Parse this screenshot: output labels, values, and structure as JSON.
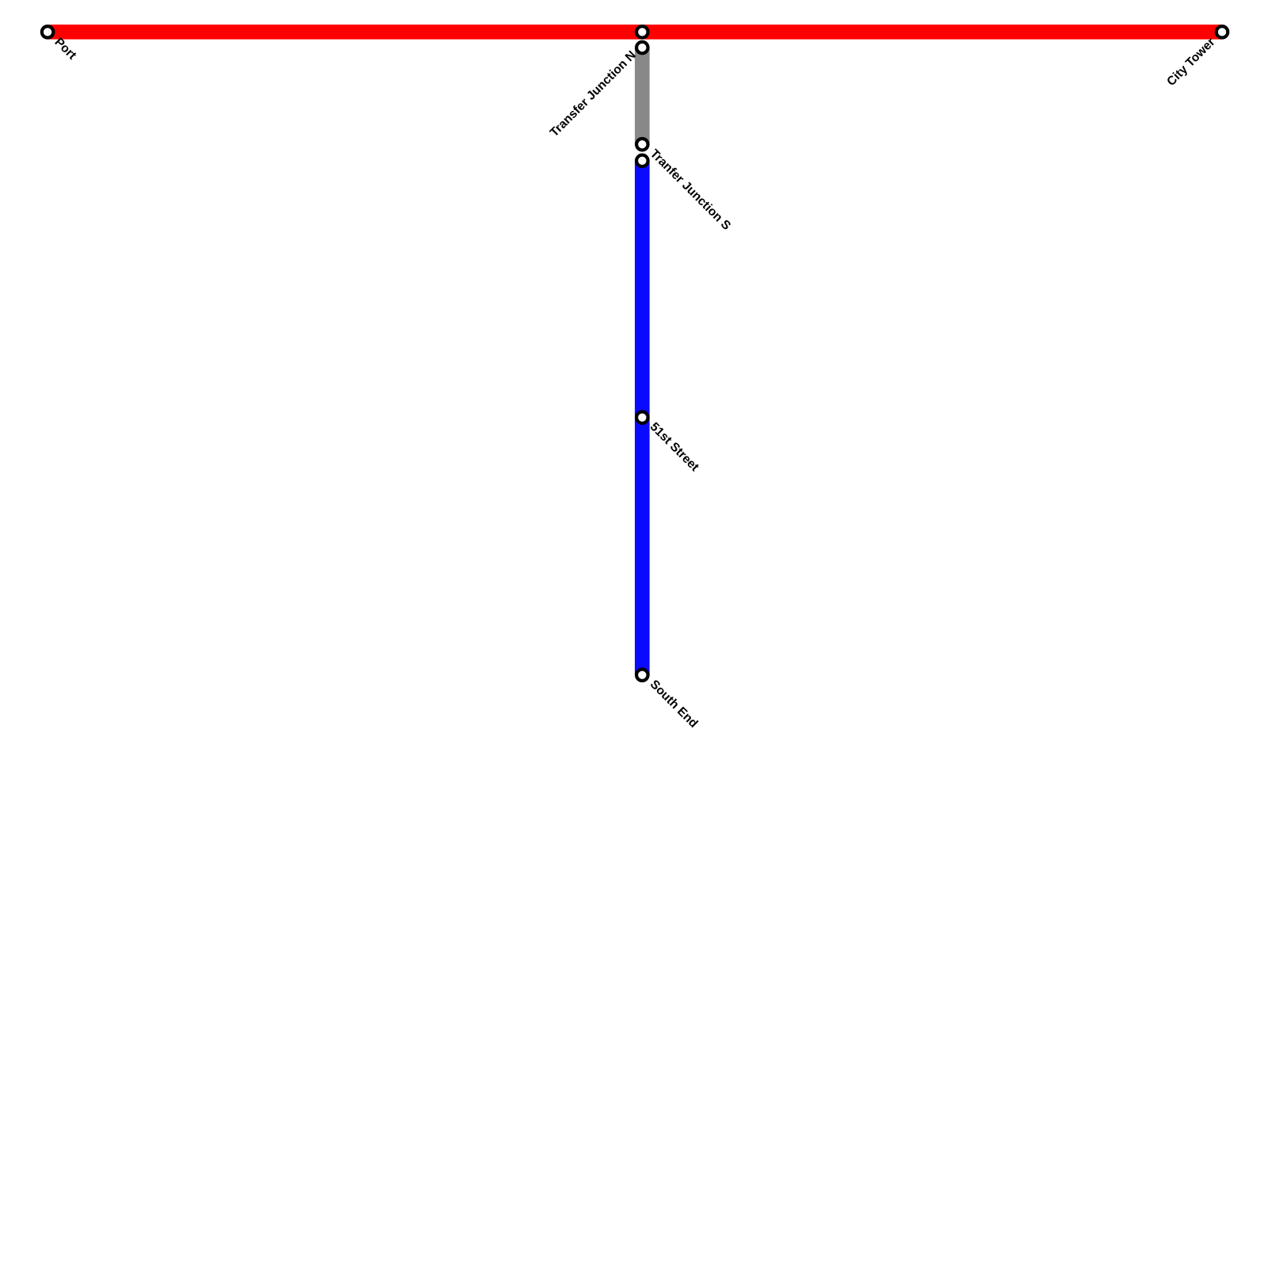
{
  "stations": [
    {
      "label": "Port"
    },
    {
      "label": "City Tower"
    },
    {
      "label": "Transfer Junction N"
    },
    {
      "label": "Tranfer Junction S"
    },
    {
      "label": "51st Street"
    },
    {
      "label": "South End"
    }
  ]
}
